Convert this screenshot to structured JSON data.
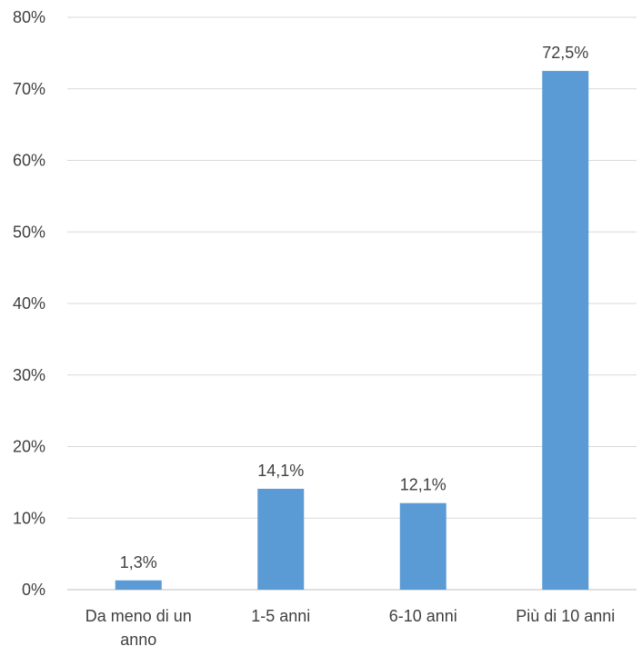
{
  "chart_data": {
    "type": "bar",
    "categories": [
      [
        "Da meno di un",
        "anno"
      ],
      [
        "1-5 anni"
      ],
      [
        "6-10 anni"
      ],
      [
        "Più di 10 anni"
      ]
    ],
    "values": [
      1.3,
      14.1,
      12.1,
      72.5
    ],
    "data_labels": [
      "1,3%",
      "14,1%",
      "12,1%",
      "72,5%"
    ],
    "ylim": [
      0,
      80
    ],
    "yticks": [
      0,
      10,
      20,
      30,
      40,
      50,
      60,
      70,
      80
    ],
    "ytick_labels": [
      "0%",
      "10%",
      "20%",
      "30%",
      "40%",
      "50%",
      "60%",
      "70%",
      "80%"
    ],
    "title": "",
    "xlabel": "",
    "ylabel": "",
    "grid": true,
    "bar_color": "#5B9BD5",
    "grid_color": "#D9D9D9",
    "text_color": "#404040"
  }
}
